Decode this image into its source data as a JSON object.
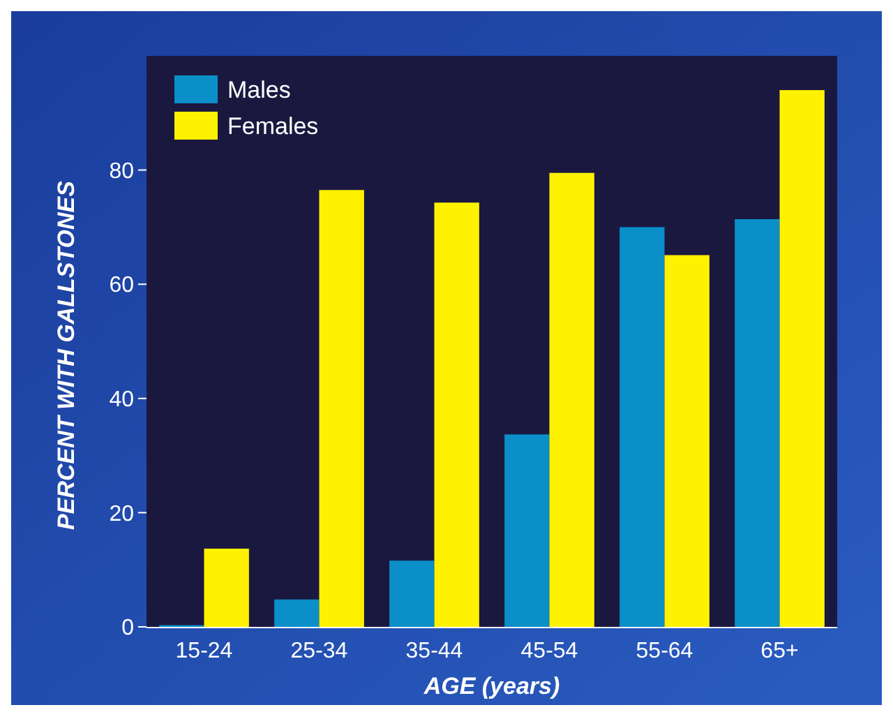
{
  "chart_data": {
    "type": "bar",
    "xlabel": "AGE (years)",
    "ylabel": "PERCENT WITH GALLSTONES",
    "categories": [
      "15-24",
      "25-34",
      "35-44",
      "45-54",
      "55-64",
      "65+"
    ],
    "series": [
      {
        "name": "Males",
        "color": "#0a8fc8",
        "values": [
          0.3,
          4.8,
          11.6,
          33.7,
          70,
          71.4
        ]
      },
      {
        "name": "Females",
        "color": "#fff200",
        "values": [
          13.7,
          76.5,
          74.3,
          79.5,
          65.1,
          94
        ]
      }
    ],
    "ylim": [
      0,
      100
    ],
    "yticks": [
      0,
      20,
      40,
      60,
      80
    ],
    "grid": false,
    "legend": "top left"
  }
}
